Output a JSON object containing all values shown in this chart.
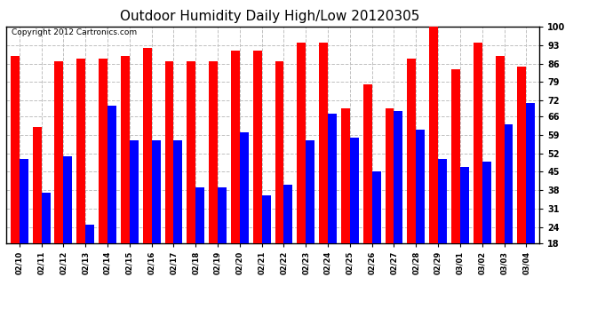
{
  "title": "Outdoor Humidity Daily High/Low 20120305",
  "copyright": "Copyright 2012 Cartronics.com",
  "dates": [
    "02/10",
    "02/11",
    "02/12",
    "02/13",
    "02/14",
    "02/15",
    "02/16",
    "02/17",
    "02/18",
    "02/19",
    "02/20",
    "02/21",
    "02/22",
    "02/23",
    "02/24",
    "02/25",
    "02/26",
    "02/27",
    "02/28",
    "02/29",
    "03/01",
    "03/02",
    "03/03",
    "03/04"
  ],
  "high": [
    89,
    62,
    87,
    88,
    88,
    89,
    92,
    87,
    87,
    87,
    91,
    91,
    87,
    94,
    94,
    69,
    78,
    69,
    88,
    100,
    84,
    94,
    89,
    85
  ],
  "low": [
    50,
    37,
    51,
    25,
    70,
    57,
    57,
    57,
    39,
    39,
    60,
    36,
    40,
    57,
    67,
    58,
    45,
    68,
    61,
    50,
    47,
    49,
    63,
    71
  ],
  "ylim": [
    18,
    100
  ],
  "yticks": [
    18,
    24,
    31,
    38,
    45,
    52,
    59,
    66,
    72,
    79,
    86,
    93,
    100
  ],
  "bar_width": 0.4,
  "high_color": "#ff0000",
  "low_color": "#0000ff",
  "bg_color": "#ffffff",
  "grid_color": "#c0c0c0",
  "title_fontsize": 11,
  "copyright_fontsize": 6.5,
  "tick_fontsize": 7,
  "xtick_fontsize": 6
}
